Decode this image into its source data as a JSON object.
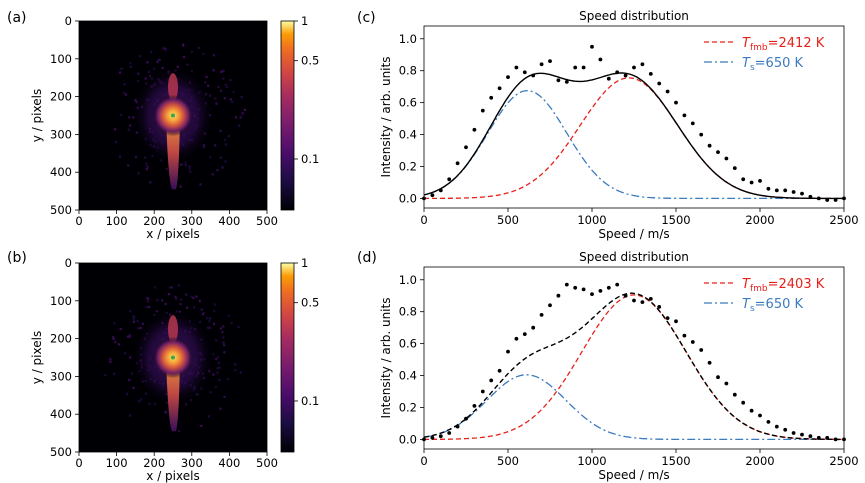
{
  "chart_data": [
    {
      "panel_label": "(a)",
      "type": "heatmap",
      "xlabel": "x / pixels",
      "ylabel": "y / pixels",
      "xlim": [
        0,
        500
      ],
      "ylim": [
        500,
        0
      ],
      "xticks": [
        0,
        100,
        200,
        300,
        400,
        500
      ],
      "yticks": [
        0,
        100,
        200,
        300,
        400,
        500
      ],
      "colorbar": {
        "scale": "log",
        "ticks": [
          "1",
          "0.5",
          "0.1"
        ],
        "colormap": "inferno"
      },
      "center_marker": {
        "x": 250,
        "y": 250,
        "color": "#3aa655"
      }
    },
    {
      "panel_label": "(b)",
      "type": "heatmap",
      "xlabel": "x / pixels",
      "ylabel": "y / pixels",
      "xlim": [
        0,
        500
      ],
      "ylim": [
        500,
        0
      ],
      "xticks": [
        0,
        100,
        200,
        300,
        400,
        500
      ],
      "yticks": [
        0,
        100,
        200,
        300,
        400,
        500
      ],
      "colorbar": {
        "scale": "log",
        "ticks": [
          "1",
          "0.5",
          "0.1"
        ],
        "colormap": "inferno"
      },
      "center_marker": {
        "x": 250,
        "y": 250,
        "color": "#3aa655"
      }
    },
    {
      "panel_label": "(c)",
      "type": "line",
      "title": "Speed distribution",
      "xlabel": "Speed / m/s",
      "ylabel": "Intensity / arb. units",
      "xlim": [
        0,
        2500
      ],
      "ylim": [
        -0.06,
        1.08
      ],
      "xticks": [
        0,
        500,
        1000,
        1500,
        2000,
        2500
      ],
      "yticks": [
        "0.0",
        "0.2",
        "0.4",
        "0.6",
        "0.8",
        "1.0"
      ],
      "legend_position": "top-right",
      "legend": [
        {
          "symbol": "T",
          "subscript": "fmb",
          "value": "=2412 K",
          "color": "#e8201a",
          "dash": "dashed"
        },
        {
          "symbol": "T",
          "subscript": "s",
          "value": "=650 K",
          "color": "#3b7bbf",
          "dash": "dashdot"
        }
      ],
      "fit_fmb": {
        "peak_speed": 1220,
        "amplitude": 0.755,
        "sigma": 290
      },
      "fit_s": {
        "peak_speed": 615,
        "amplitude": 0.675,
        "sigma": 235
      },
      "sum_line_style": "solid",
      "data_x": [
        0,
        50,
        100,
        150,
        200,
        250,
        300,
        350,
        400,
        450,
        500,
        550,
        600,
        650,
        700,
        750,
        800,
        850,
        900,
        950,
        1000,
        1050,
        1100,
        1150,
        1200,
        1250,
        1300,
        1350,
        1400,
        1450,
        1500,
        1550,
        1600,
        1650,
        1700,
        1750,
        1800,
        1850,
        1900,
        1950,
        2000,
        2050,
        2100,
        2150,
        2200,
        2250,
        2300,
        2350,
        2400,
        2450,
        2500
      ],
      "data_y": [
        0.0,
        0.02,
        0.05,
        0.12,
        0.22,
        0.32,
        0.43,
        0.55,
        0.63,
        0.69,
        0.76,
        0.82,
        0.79,
        0.77,
        0.84,
        0.86,
        0.74,
        0.73,
        0.82,
        0.82,
        0.95,
        0.87,
        0.75,
        0.79,
        0.77,
        0.82,
        0.84,
        0.78,
        0.72,
        0.67,
        0.6,
        0.52,
        0.47,
        0.4,
        0.33,
        0.29,
        0.25,
        0.19,
        0.12,
        0.1,
        0.11,
        0.06,
        0.05,
        0.05,
        0.04,
        0.03,
        0.01,
        0.0,
        -0.01,
        -0.01,
        0.0
      ]
    },
    {
      "panel_label": "(d)",
      "type": "line",
      "title": "Speed distribution",
      "xlabel": "Speed / m/s",
      "ylabel": "Intensity / arb. units",
      "xlim": [
        0,
        2500
      ],
      "ylim": [
        -0.06,
        1.08
      ],
      "xticks": [
        0,
        500,
        1000,
        1500,
        2000,
        2500
      ],
      "yticks": [
        "0.0",
        "0.2",
        "0.4",
        "0.6",
        "0.8",
        "1.0"
      ],
      "legend_position": "top-right",
      "legend": [
        {
          "symbol": "T",
          "subscript": "fmb",
          "value": "=2403 K",
          "color": "#e8201a",
          "dash": "dashed"
        },
        {
          "symbol": "T",
          "subscript": "s",
          "value": "=650 K",
          "color": "#3b7bbf",
          "dash": "dashdot"
        }
      ],
      "fit_fmb": {
        "peak_speed": 1250,
        "amplitude": 0.905,
        "sigma": 310
      },
      "fit_s": {
        "peak_speed": 610,
        "amplitude": 0.405,
        "sigma": 235
      },
      "sum_line_style": "dashed",
      "data_x": [
        0,
        50,
        100,
        150,
        200,
        250,
        300,
        350,
        400,
        450,
        500,
        550,
        600,
        650,
        700,
        750,
        800,
        850,
        900,
        950,
        1000,
        1050,
        1100,
        1150,
        1200,
        1250,
        1300,
        1350,
        1400,
        1450,
        1500,
        1550,
        1600,
        1650,
        1700,
        1750,
        1800,
        1850,
        1900,
        1950,
        2000,
        2050,
        2100,
        2150,
        2200,
        2250,
        2300,
        2350,
        2400,
        2450,
        2500
      ],
      "data_y": [
        0.0,
        0.01,
        0.02,
        0.04,
        0.08,
        0.13,
        0.21,
        0.3,
        0.37,
        0.43,
        0.55,
        0.63,
        0.66,
        0.7,
        0.78,
        0.84,
        0.9,
        0.97,
        0.95,
        0.94,
        0.91,
        0.93,
        0.95,
        0.97,
        0.9,
        0.87,
        0.86,
        0.88,
        0.83,
        0.76,
        0.74,
        0.65,
        0.61,
        0.56,
        0.48,
        0.39,
        0.35,
        0.28,
        0.23,
        0.18,
        0.15,
        0.11,
        0.08,
        0.06,
        0.04,
        0.03,
        0.02,
        0.01,
        0.01,
        0.0,
        0.0
      ]
    }
  ]
}
